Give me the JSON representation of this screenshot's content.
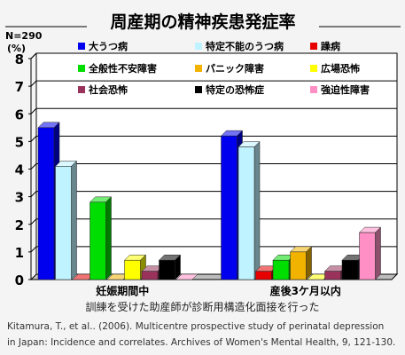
{
  "chart_data": {
    "type": "bar",
    "title": "周産期の精神疾患発症率",
    "n_label": "N=290",
    "ylabel": "(%)",
    "ylim": [
      0,
      8
    ],
    "yticks": [
      0,
      1,
      2,
      3,
      4,
      5,
      6,
      7,
      8
    ],
    "grid": true,
    "legend_position": "top",
    "categories": [
      "妊娠期間中",
      "産後3ケ月以内"
    ],
    "series": [
      {
        "name": "大うつ病",
        "color": "#0000ee",
        "values": [
          5.5,
          5.2
        ]
      },
      {
        "name": "特定不能のうつ病",
        "color": "#bff3ff",
        "values": [
          4.1,
          4.8
        ]
      },
      {
        "name": "躁病",
        "color": "#e60000",
        "values": [
          0.0,
          0.3
        ]
      },
      {
        "name": "全般性不安障害",
        "color": "#00dd00",
        "values": [
          2.8,
          0.7
        ]
      },
      {
        "name": "パニック障害",
        "color": "#f2b200",
        "values": [
          0.0,
          1.0
        ]
      },
      {
        "name": "広場恐怖",
        "color": "#ffff00",
        "values": [
          0.7,
          0.0
        ]
      },
      {
        "name": "社会恐怖",
        "color": "#99335c",
        "values": [
          0.3,
          0.3
        ]
      },
      {
        "name": "特定の恐怖症",
        "color": "#000000",
        "values": [
          0.7,
          0.7
        ]
      },
      {
        "name": "強迫性障害",
        "color": "#ff8fc4",
        "values": [
          0.0,
          1.7
        ]
      }
    ]
  },
  "caption": "訓練を受けた助産師が診断用構造化面接を行った",
  "citation": [
    "Kitamura, T., et al.. (2006). Multicentre prospective study of perinatal depression",
    "in Japan: Incidence and correlates. Archives of Women's Mental Health, 9, 121-130."
  ]
}
